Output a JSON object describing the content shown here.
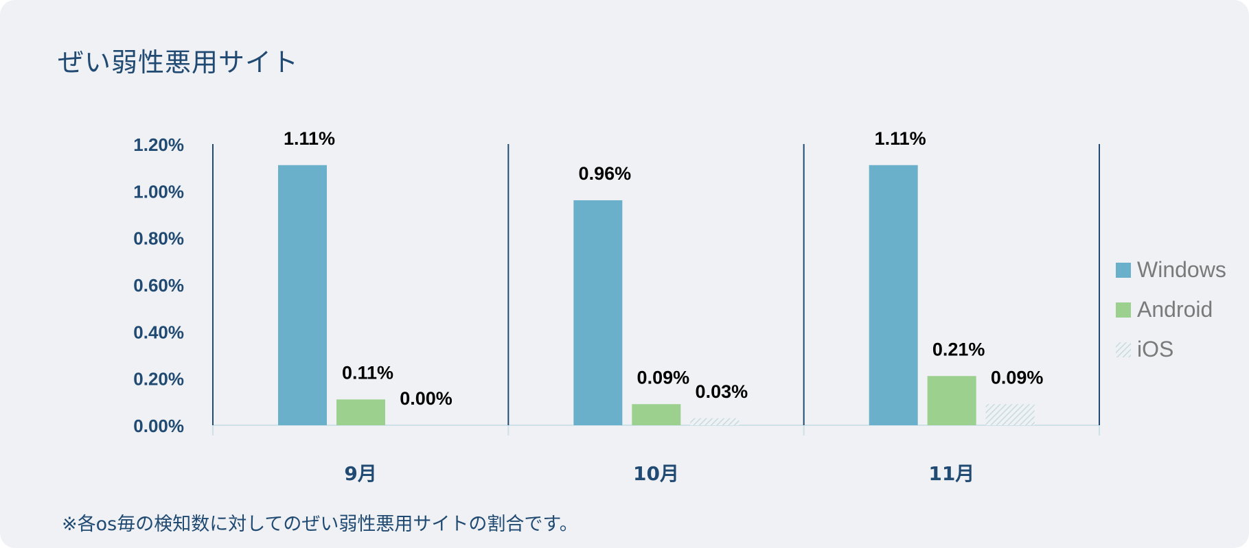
{
  "title": "ぜい弱性悪用サイト",
  "footnote": "※各os毎の検知数に対してのぜい弱性悪用サイトの割合です。",
  "colors": {
    "background": "#eff1f5",
    "windows": "#6ab0ca",
    "android": "#9bd08e",
    "ios_hatch": "#c9d9e0",
    "axis": "#214a72"
  },
  "chart_data": {
    "type": "bar",
    "title": "ぜい弱性悪用サイト",
    "categories": [
      "9月",
      "10月",
      "11月"
    ],
    "series": [
      {
        "name": "Windows",
        "values": [
          1.11,
          0.96,
          1.11
        ]
      },
      {
        "name": "Android",
        "values": [
          0.11,
          0.09,
          0.21
        ]
      },
      {
        "name": "iOS",
        "values": [
          0.0,
          0.03,
          0.09
        ]
      }
    ],
    "value_labels": [
      [
        "1.11%",
        "0.96%",
        "1.11%"
      ],
      [
        "0.11%",
        "0.09%",
        "0.21%"
      ],
      [
        "0.00%",
        "0.03%",
        "0.09%"
      ]
    ],
    "y_ticks": [
      "0.00%",
      "0.20%",
      "0.40%",
      "0.60%",
      "0.80%",
      "1.00%",
      "1.20%"
    ],
    "ylim": [
      0,
      1.2
    ],
    "unit": "%",
    "xlabel": "",
    "ylabel": "",
    "grid": false,
    "legend": "right"
  }
}
